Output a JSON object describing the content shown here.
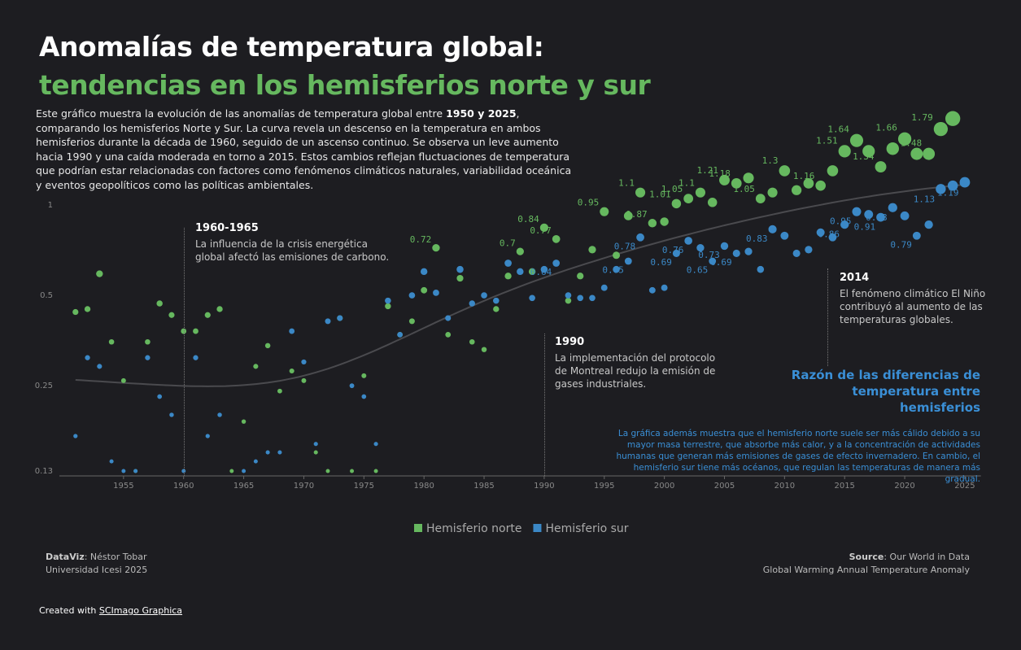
{
  "chart_data": {
    "type": "scatter",
    "title": "Anomalías de temperatura global:",
    "subtitle": "tendencias en los hemisferios norte y sur",
    "description": [
      "Este gráfico muestra la evolución de las anomalías de temperatura global entre ",
      "1950 y 2025",
      ", comparando los hemisferios Norte y Sur. La curva revela un descenso en la temperatura en ambos hemisferios durante la década de 1960, seguido de un ascenso continuo. Se observa un leve aumento hacia 1990 y una caída moderada en torno a 2015. Estos cambios reflejan fluctuaciones de temperatura que podrían estar relacionadas con factores como fenómenos climáticos naturales, variabilidad oceánica y eventos geopolíticos como las políticas ambientales."
    ],
    "x": [
      1951,
      1952,
      1953,
      1954,
      1955,
      1956,
      1957,
      1958,
      1959,
      1960,
      1961,
      1962,
      1963,
      1964,
      1965,
      1966,
      1967,
      1968,
      1969,
      1970,
      1971,
      1972,
      1973,
      1974,
      1975,
      1976,
      1977,
      1978,
      1979,
      1980,
      1981,
      1982,
      1983,
      1984,
      1985,
      1986,
      1987,
      1988,
      1989,
      1990,
      1991,
      1992,
      1993,
      1994,
      1995,
      1996,
      1997,
      1998,
      1999,
      2000,
      2001,
      2002,
      2003,
      2004,
      2005,
      2006,
      2007,
      2008,
      2009,
      2010,
      2011,
      2012,
      2013,
      2014,
      2015,
      2016,
      2017,
      2018,
      2019,
      2020,
      2021,
      2022,
      2023,
      2024,
      2025
    ],
    "series": [
      {
        "name": "Hemisferio norte",
        "color": "#66b85f",
        "values": [
          0.44,
          0.45,
          0.59,
          0.35,
          0.26,
          0.13,
          0.35,
          0.47,
          0.43,
          0.38,
          0.38,
          0.43,
          0.45,
          0.13,
          0.19,
          0.29,
          0.34,
          0.24,
          0.28,
          0.26,
          0.15,
          0.13,
          0.42,
          0.13,
          0.27,
          0.13,
          0.46,
          0.37,
          0.41,
          0.52,
          0.72,
          0.37,
          0.57,
          0.35,
          0.33,
          0.45,
          0.58,
          0.7,
          0.6,
          0.84,
          0.77,
          0.48,
          0.58,
          0.71,
          0.95,
          0.68,
          0.92,
          1.1,
          0.87,
          0.88,
          1.01,
          1.05,
          1.1,
          1.02,
          1.21,
          1.18,
          1.23,
          1.05,
          1.1,
          1.3,
          1.12,
          1.18,
          1.16,
          1.3,
          1.51,
          1.64,
          1.51,
          1.34,
          1.54,
          1.66,
          1.48,
          1.48,
          1.79,
          1.94,
          null
        ],
        "value_labels": [
          null,
          null,
          null,
          null,
          null,
          null,
          null,
          null,
          null,
          null,
          null,
          null,
          null,
          null,
          null,
          null,
          null,
          null,
          null,
          null,
          null,
          null,
          null,
          null,
          null,
          null,
          null,
          null,
          null,
          null,
          "0.72",
          null,
          null,
          null,
          null,
          null,
          null,
          "0.7",
          null,
          "0.84",
          "0.77",
          null,
          null,
          null,
          "0.95",
          null,
          null,
          "1.1",
          "0.87",
          null,
          "1.01",
          "1.05",
          "1.1",
          null,
          "1.21",
          "1.18",
          null,
          "1.05",
          null,
          "1.3",
          null,
          null,
          "1.16",
          null,
          "1.51",
          "1.64",
          null,
          "1.34",
          null,
          "1.66",
          null,
          "1.48",
          "1.79",
          null,
          null
        ]
      },
      {
        "name": "Hemisferio sur",
        "color": "#3b88c6",
        "values": [
          0.17,
          0.31,
          0.29,
          0.14,
          0.13,
          0.13,
          0.31,
          0.23,
          0.2,
          0.13,
          0.31,
          0.17,
          0.2,
          null,
          0.13,
          0.14,
          0.15,
          0.15,
          0.38,
          0.3,
          0.16,
          0.41,
          0.42,
          0.25,
          0.23,
          0.16,
          0.48,
          0.37,
          0.5,
          0.6,
          0.51,
          0.42,
          0.61,
          0.47,
          0.5,
          0.48,
          0.64,
          0.6,
          0.49,
          0.61,
          0.64,
          0.5,
          0.49,
          0.49,
          0.53,
          0.61,
          0.65,
          0.78,
          0.52,
          0.53,
          0.69,
          0.76,
          0.72,
          0.65,
          0.73,
          0.69,
          0.7,
          0.61,
          0.83,
          0.79,
          0.69,
          0.71,
          0.81,
          0.78,
          0.86,
          0.95,
          0.93,
          0.91,
          0.98,
          0.92,
          0.79,
          0.86,
          1.13,
          1.16,
          1.19
        ],
        "value_labels": [
          null,
          null,
          null,
          null,
          null,
          null,
          null,
          null,
          null,
          null,
          null,
          null,
          null,
          null,
          null,
          null,
          null,
          null,
          null,
          null,
          null,
          null,
          null,
          null,
          null,
          null,
          null,
          null,
          null,
          null,
          null,
          null,
          null,
          null,
          null,
          null,
          null,
          null,
          null,
          null,
          "0.64",
          null,
          null,
          null,
          null,
          null,
          "0.65",
          "0.78",
          null,
          null,
          "0.69",
          "0.76",
          null,
          "0.65",
          "0.73",
          "0.69",
          null,
          null,
          "0.83",
          null,
          null,
          null,
          null,
          null,
          "0.86",
          "0.95",
          null,
          "0.91",
          "0.98",
          null,
          "0.79",
          null,
          "1.13",
          null,
          "1.19"
        ]
      }
    ],
    "xlim": [
      1950,
      2026
    ],
    "xticks": [
      1955,
      1960,
      1965,
      1970,
      1975,
      1980,
      1985,
      1990,
      1995,
      2000,
      2005,
      2010,
      2015,
      2020,
      2025
    ],
    "ylim": [
      0.126,
      2.14
    ],
    "yticks": [
      0.13,
      0.25,
      0.5,
      1
    ],
    "log_y": true,
    "grid": false,
    "legend": "bottom",
    "annotations": [
      {
        "title": "1960-1965",
        "text": "La influencia de la crisis energética global afectó las emisiones de carbono."
      },
      {
        "title": "1990",
        "text": "La implementación del protocolo de Montreal redujo la emisión de gases industriales."
      },
      {
        "title": "2014",
        "text": "El fenómeno climático El Niño contribuyó al aumento de las temperaturas globales."
      }
    ],
    "side_note": {
      "title": "Razón de las diferencias de temperatura entre hemisferios",
      "text": "La gráfica además muestra que el hemisferio norte suele ser más cálido debido a su mayor masa terrestre, que absorbe más calor, y a la concentración de actividades humanas que generan más emisiones de gases de efecto invernadero. En cambio, el hemisferio sur tiene más océanos, que regulan las temperaturas de manera más gradual."
    }
  },
  "credits": {
    "dataviz_label": "DataViz",
    "dataviz_name": ": Néstor Tobar",
    "institution": "Universidad Icesi 2025",
    "source_label": "Source",
    "source_name": ": Our World in Data",
    "source_dataset": "Global Warming Annual Temperature Anomaly",
    "created_with": "Created with ",
    "tool": "SCImago Graphica"
  }
}
